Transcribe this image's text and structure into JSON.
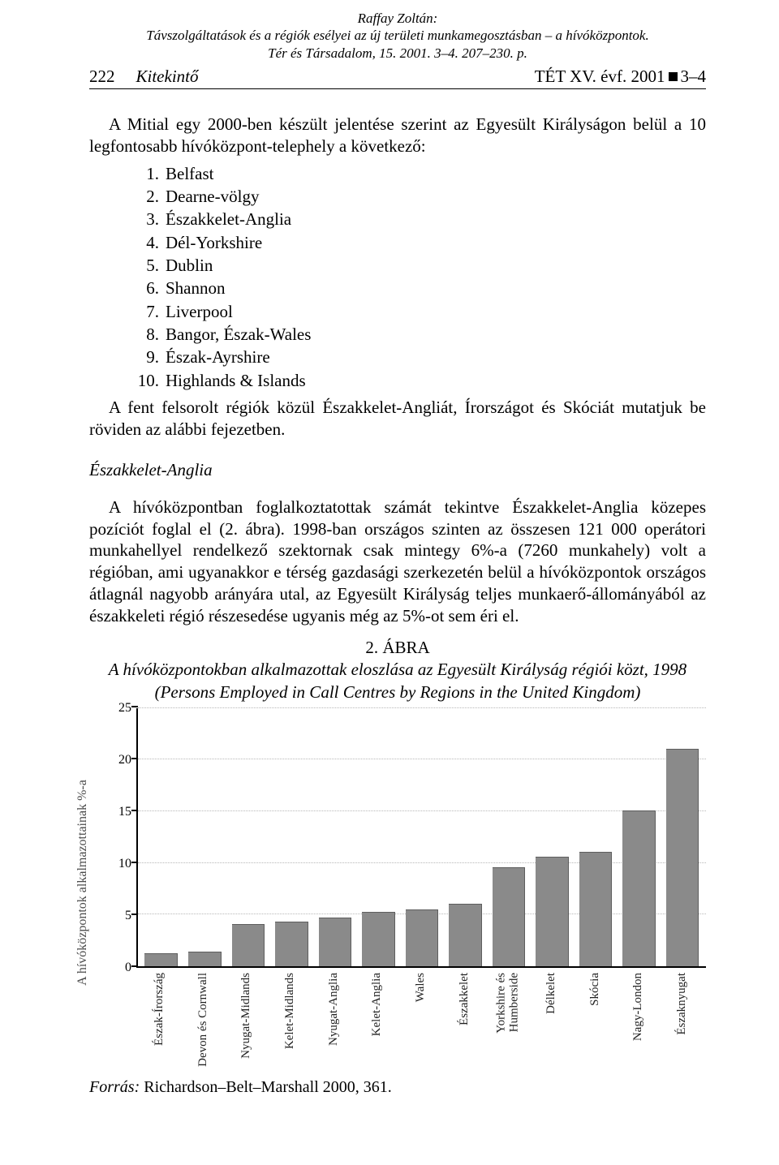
{
  "scan_header": {
    "author": "Raffay Zoltán:",
    "title_line1": "Távszolgáltatások és a régiók esélyei az új területi munkamegosztásban – a hívóközpontok.",
    "title_line2": "Tér és Társadalom, 15. 2001. 3–4. 207–230. p."
  },
  "running_head": {
    "page_number": "222",
    "section_name": "Kitekintő",
    "right": "TÉT XV. évf. 2001 ■ 3–4",
    "right_prefix": "TÉT XV. évf. 2001",
    "right_suffix": "3–4"
  },
  "para1": "A Mitial egy 2000-ben készült jelentése szerint az Egyesült Királyságon belül a 10 legfontosabb hívóközpont-telephely a következő:",
  "list": [
    "Belfast",
    "Dearne-völgy",
    "Északkelet-Anglia",
    "Dél-Yorkshire",
    "Dublin",
    "Shannon",
    "Liverpool",
    "Bangor, Észak-Wales",
    "Észak-Ayrshire",
    "Highlands & Islands"
  ],
  "para2": "A fent felsorolt régiók közül Északkelet-Angliát, Írországot és Skóciát mutatjuk be röviden az alábbi fejezetben.",
  "subhead": "Északkelet-Anglia",
  "para3": "A hívóközpontban foglalkoztatottak számát tekintve Északkelet-Anglia közepes pozíciót foglal el (2. ábra). 1998-ban országos szinten az összesen 121 000 operátori munkahellyel rendelkező szektornak csak mintegy 6%-a (7260 munkahely) volt a régióban, ami ugyanakkor e térség gazdasági szerkezetén belül a hívóközpontok országos átlagnál nagyobb arányára utal, az Egyesült Királyság teljes munkaerő-állományából az északkeleti régió részesedése ugyanis még az 5%-ot sem éri el.",
  "figure": {
    "number": "2. ÁBRA",
    "title_hu": "A hívóközpontokban alkalmazottak eloszlása az Egyesült Királyság régiói közt, 1998",
    "title_en": "(Persons Employed in Call Centres by Regions in the United Kingdom)"
  },
  "chart": {
    "type": "bar",
    "y_label": "A hívóközpontok alkalmazottainak %-a",
    "ylim": [
      0,
      25
    ],
    "yticks": [
      0,
      5,
      10,
      15,
      20,
      25
    ],
    "bar_color": "#8a8a8a",
    "axis_color": "#000000",
    "grid_color": "#b8b8b8",
    "label_fontsize": 15,
    "tick_fontsize": 16,
    "background_color": "#ffffff",
    "categories": [
      "Észak-Írország",
      "Devon és Cornwall",
      "Nyugat-Midlands",
      "Kelet-Midlands",
      "Nyugat-Anglia",
      "Kelet-Anglia",
      "Wales",
      "Északkelet",
      "Yorkshire és\nHumberside",
      "Délkelet",
      "Skócia",
      "Nagy-London",
      "Északnyugat"
    ],
    "values": [
      1.2,
      1.3,
      4.0,
      4.2,
      4.6,
      5.2,
      5.4,
      6.0,
      9.5,
      10.5,
      11.0,
      15.0,
      21.0
    ]
  },
  "source": {
    "label": "Forrás:",
    "text": " Richardson–Belt–Marshall 2000, 361."
  }
}
